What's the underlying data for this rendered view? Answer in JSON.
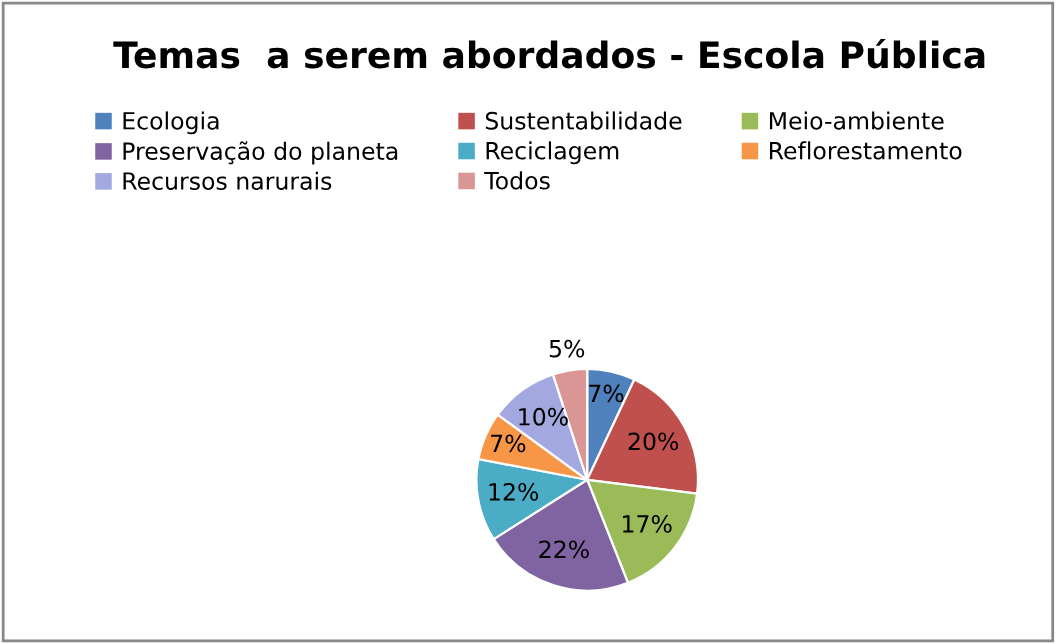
{
  "chart_data": {
    "type": "pie",
    "title": "Temas  a serem abordados - Escola Pública",
    "categories": [
      "Ecologia",
      "Sustentabilidade",
      "Meio-ambiente",
      "Preservação do planeta",
      "Reciclagem",
      "Reflorestamento",
      "Recursos narurais",
      "Todos"
    ],
    "values": [
      7,
      20,
      17,
      22,
      12,
      7,
      10,
      5
    ],
    "colors": [
      "#4f81bd",
      "#c0504d",
      "#9bbb59",
      "#8064a2",
      "#4bacc6",
      "#f79646",
      "#a3a9e0",
      "#d99694"
    ],
    "value_labels": [
      "7%",
      "20%",
      "17%",
      "22%",
      "12%",
      "7%",
      "10%",
      "5%"
    ],
    "legend": "top"
  }
}
